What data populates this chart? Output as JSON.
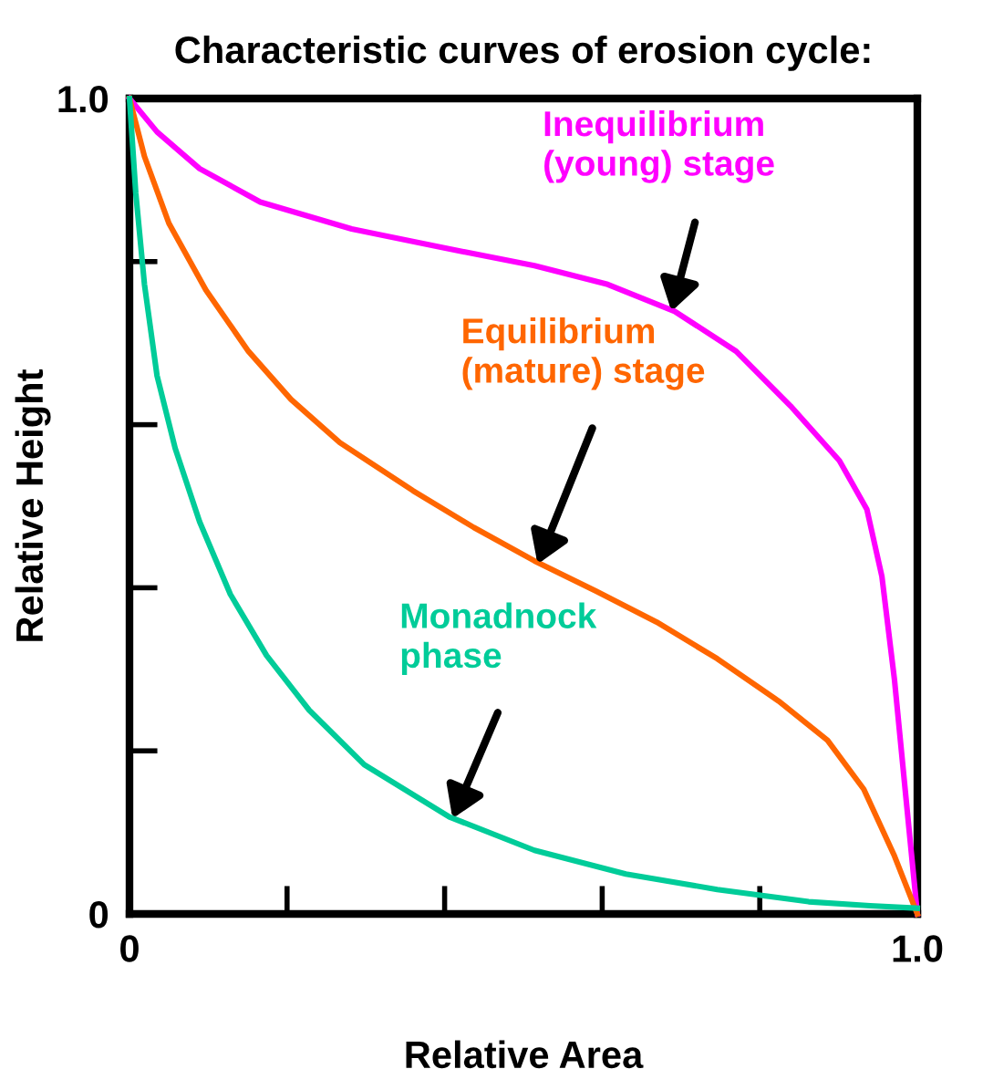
{
  "chart_data": {
    "type": "line",
    "title": "Characteristic curves of erosion cycle:",
    "xlabel": "Relative Area",
    "ylabel": "Relative Height",
    "xlim": [
      0,
      1.0
    ],
    "ylim": [
      0,
      1.0
    ],
    "xticks": [
      {
        "value": 0,
        "label": "0"
      },
      {
        "value": 0.2,
        "label": null
      },
      {
        "value": 0.4,
        "label": null
      },
      {
        "value": 0.6,
        "label": null
      },
      {
        "value": 0.8,
        "label": null
      },
      {
        "value": 1.0,
        "label": "1.0"
      }
    ],
    "yticks": [
      {
        "value": 0,
        "label": "0"
      },
      {
        "value": 0.2,
        "label": null
      },
      {
        "value": 0.4,
        "label": null
      },
      {
        "value": 0.6,
        "label": null
      },
      {
        "value": 0.8,
        "label": null
      },
      {
        "value": 1.0,
        "label": "1.0"
      }
    ],
    "grid": false,
    "marker": "none",
    "line_style": "solid",
    "series": [
      {
        "color": "#ff00ff",
        "x": [
          0,
          0.035,
          0.089,
          0.166,
          0.282,
          0.398,
          0.514,
          0.607,
          0.692,
          0.77,
          0.839,
          0.901,
          0.936,
          0.955,
          0.971,
          0.986,
          1.0
        ],
        "values": [
          1.0,
          0.959,
          0.914,
          0.873,
          0.84,
          0.817,
          0.795,
          0.772,
          0.739,
          0.69,
          0.623,
          0.556,
          0.496,
          0.414,
          0.287,
          0.138,
          0
        ]
      },
      {
        "color": "#ff6600",
        "x": [
          0,
          0.019,
          0.05,
          0.097,
          0.151,
          0.205,
          0.267,
          0.36,
          0.437,
          0.514,
          0.592,
          0.669,
          0.746,
          0.824,
          0.886,
          0.932,
          0.971,
          1.0
        ],
        "values": [
          1.0,
          0.929,
          0.847,
          0.765,
          0.69,
          0.631,
          0.578,
          0.519,
          0.474,
          0.433,
          0.396,
          0.358,
          0.313,
          0.261,
          0.213,
          0.153,
          0.071,
          0
        ]
      },
      {
        "color": "#00cc99",
        "x": [
          0,
          0.008,
          0.019,
          0.035,
          0.058,
          0.089,
          0.128,
          0.174,
          0.228,
          0.298,
          0.406,
          0.514,
          0.63,
          0.746,
          0.862,
          0.94,
          1.0
        ],
        "values": [
          1.0,
          0.884,
          0.772,
          0.66,
          0.571,
          0.481,
          0.392,
          0.317,
          0.25,
          0.183,
          0.119,
          0.078,
          0.049,
          0.03,
          0.015,
          0.01,
          0.007
        ]
      }
    ],
    "annotations": [
      {
        "text": "Inequilibrium\n(young) stage",
        "x": 0.688,
        "y": 0.739
      },
      {
        "text": "Equilibrium\n(mature) stage",
        "x": 0.518,
        "y": 0.429
      },
      {
        "text": "Monadnock\nphase",
        "x": 0.41,
        "y": 0.117
      }
    ]
  }
}
